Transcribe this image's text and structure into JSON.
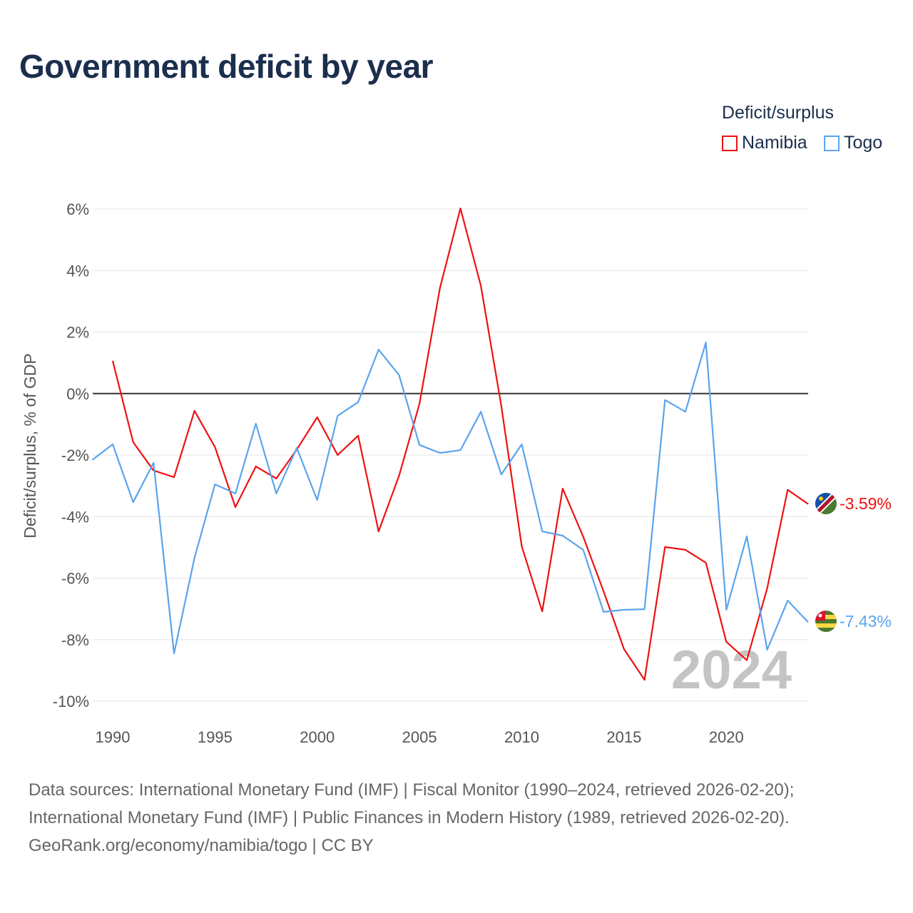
{
  "chart_data": {
    "type": "line",
    "title": "Government deficit by year",
    "ylabel": "Deficit/surplus, % of GDP",
    "xlabel": "",
    "legend_title": "Deficit/surplus",
    "legend_position": "top-right",
    "xlim": [
      1989,
      2024
    ],
    "ylim": [
      -10,
      6
    ],
    "x_ticks": [
      1990,
      1995,
      2000,
      2005,
      2010,
      2015,
      2020
    ],
    "y_ticks": [
      6,
      4,
      2,
      0,
      -2,
      -4,
      -6,
      -8,
      -10
    ],
    "y_tick_labels": [
      "6%",
      "4%",
      "2%",
      "0%",
      "-2%",
      "-4%",
      "-6%",
      "-8%",
      "-10%"
    ],
    "grid": true,
    "watermark_year": "2024",
    "series": [
      {
        "name": "Namibia",
        "color": "#ee1111",
        "end_label": "-3.59%",
        "x": [
          1990,
          1991,
          1992,
          1993,
          1994,
          1995,
          1996,
          1997,
          1998,
          1999,
          2000,
          2001,
          2002,
          2003,
          2004,
          2005,
          2006,
          2007,
          2008,
          2009,
          2010,
          2011,
          2012,
          2013,
          2014,
          2015,
          2016,
          2017,
          2018,
          2019,
          2020,
          2021,
          2022,
          2023,
          2024
        ],
        "values": [
          1.06,
          -1.58,
          -2.5,
          -2.72,
          -0.56,
          -1.74,
          -3.69,
          -2.37,
          -2.76,
          -1.82,
          -0.77,
          -2.0,
          -1.37,
          -4.48,
          -2.67,
          -0.33,
          3.43,
          6.02,
          3.5,
          -0.4,
          -4.97,
          -7.08,
          -3.09,
          -4.65,
          -6.43,
          -8.31,
          -9.31,
          -4.99,
          -5.08,
          -5.5,
          -8.07,
          -8.67,
          -6.33,
          -3.13,
          -3.59
        ]
      },
      {
        "name": "Togo",
        "color": "#5ba4ee",
        "end_label": "-7.43%",
        "x": [
          1989,
          1990,
          1991,
          1992,
          1993,
          1994,
          1995,
          1996,
          1997,
          1998,
          1999,
          2000,
          2001,
          2002,
          2003,
          2004,
          2005,
          2006,
          2007,
          2008,
          2009,
          2010,
          2011,
          2012,
          2013,
          2014,
          2015,
          2016,
          2017,
          2018,
          2019,
          2020,
          2021,
          2022,
          2023,
          2024
        ],
        "values": [
          -2.16,
          -1.65,
          -3.53,
          -2.25,
          -8.45,
          -5.34,
          -2.95,
          -3.25,
          -0.98,
          -3.25,
          -1.77,
          -3.46,
          -0.72,
          -0.28,
          1.43,
          0.6,
          -1.67,
          -1.93,
          -1.84,
          -0.59,
          -2.63,
          -1.65,
          -4.48,
          -4.62,
          -5.08,
          -7.1,
          -7.03,
          -7.01,
          -0.21,
          -0.59,
          1.66,
          -7.03,
          -4.64,
          -8.33,
          -6.73,
          -7.43
        ]
      }
    ]
  },
  "footer": {
    "line1": "Data sources: International Monetary Fund (IMF) | Fiscal Monitor (1990–2024, retrieved 2026-02-20);",
    "line2": "International Monetary Fund (IMF) | Public Finances in Modern History (1989, retrieved 2026-02-20).",
    "line3": "GeoRank.org/economy/namibia/togo | CC BY"
  }
}
